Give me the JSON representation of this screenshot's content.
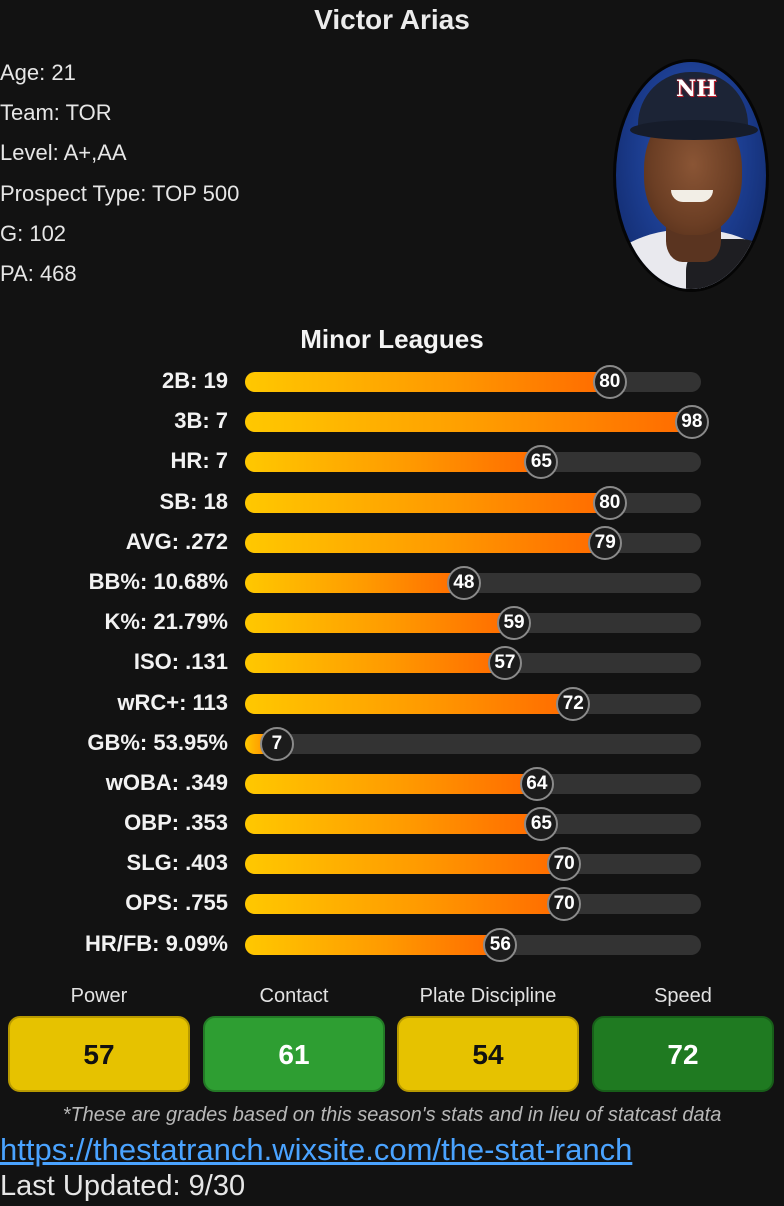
{
  "player": {
    "name": "Victor Arias",
    "info": [
      "Age: 21",
      "Team: TOR",
      "Level: A+,AA",
      "Prospect Type: TOP 500",
      "G: 102",
      "PA: 468"
    ],
    "photo_icon": "player-headshot-photo"
  },
  "section": {
    "title": "Minor Leagues"
  },
  "stats": [
    {
      "label": "2B: 19",
      "percentile": 80
    },
    {
      "label": "3B: 7",
      "percentile": 98
    },
    {
      "label": "HR: 7",
      "percentile": 65
    },
    {
      "label": "SB: 18",
      "percentile": 80
    },
    {
      "label": "AVG: .272",
      "percentile": 79
    },
    {
      "label": "BB%: 10.68%",
      "percentile": 48
    },
    {
      "label": "K%: 21.79%",
      "percentile": 59
    },
    {
      "label": "ISO: .131",
      "percentile": 57
    },
    {
      "label": "wRC+: 113",
      "percentile": 72
    },
    {
      "label": "GB%: 53.95%",
      "percentile": 7
    },
    {
      "label": "wOBA: .349",
      "percentile": 64
    },
    {
      "label": "OBP: .353",
      "percentile": 65
    },
    {
      "label": "SLG: .403",
      "percentile": 70
    },
    {
      "label": "OPS: .755",
      "percentile": 70
    },
    {
      "label": "HR/FB: 9.09%",
      "percentile": 56
    }
  ],
  "grades": [
    {
      "label": "Power",
      "value": "57",
      "bg": "#e6c200",
      "border": "#b89a00",
      "text": "#111111"
    },
    {
      "label": "Contact",
      "value": "61",
      "bg": "#2e9e32",
      "border": "#237a26",
      "text": "#ffffff"
    },
    {
      "label": "Plate Discipline",
      "value": "54",
      "bg": "#e6c200",
      "border": "#b89a00",
      "text": "#111111"
    },
    {
      "label": "Speed",
      "value": "72",
      "bg": "#1f7a21",
      "border": "#175e19",
      "text": "#ffffff"
    }
  ],
  "footer": {
    "note": "*These are grades based on this season's stats and in lieu of statcast data",
    "link": "https://thestatranch.wixsite.com/the-stat-ranch",
    "updated": "Last Updated: 9/30"
  },
  "colors": {
    "background": "#121212",
    "bar_start": "#ffc800",
    "bar_end": "#ff6a00",
    "track": "#333333",
    "link": "#4aa3ff"
  }
}
